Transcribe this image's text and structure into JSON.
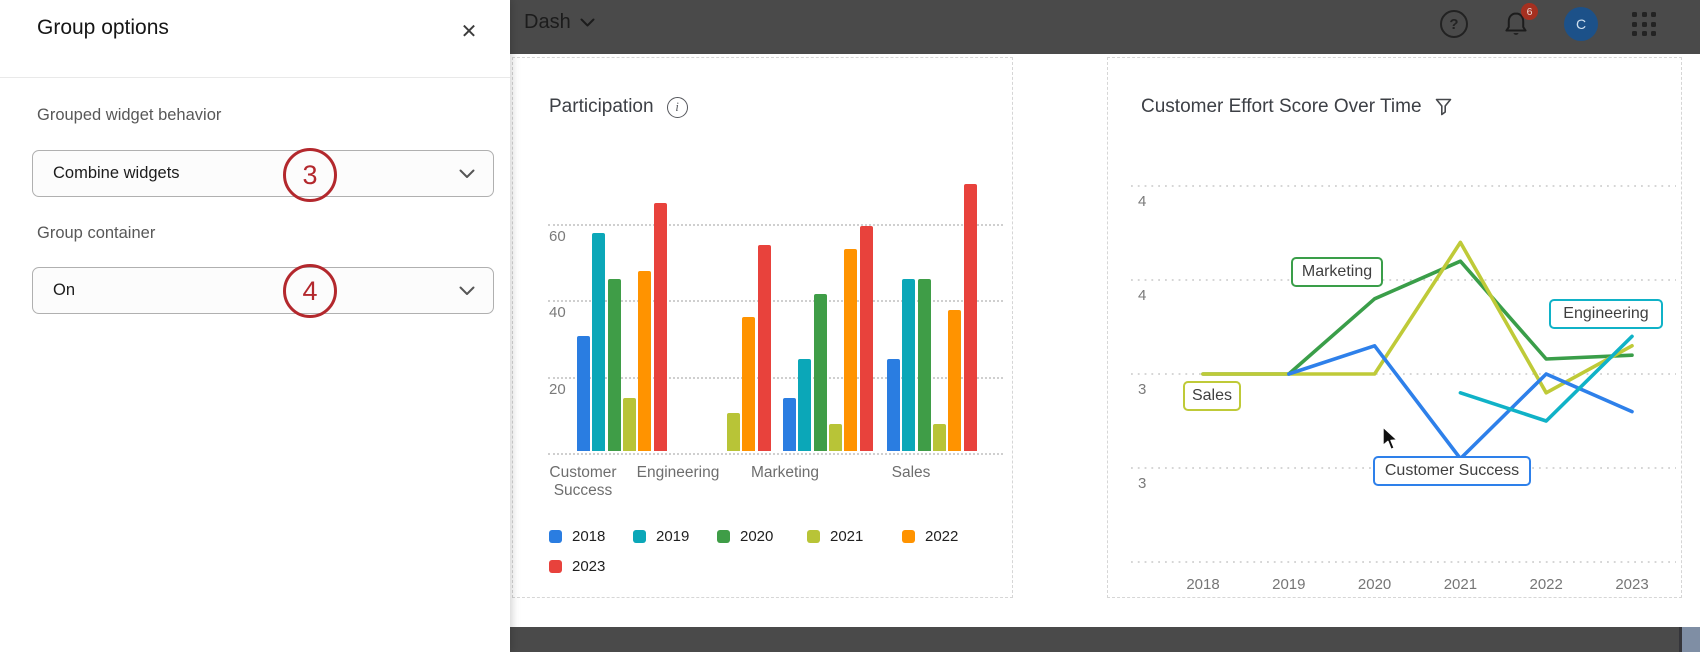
{
  "topbar": {
    "dashboard_name": "Dash",
    "notification_count": "6",
    "avatar_initial": "C",
    "help_glyph": "?"
  },
  "panel": {
    "title": "Group options",
    "close_glyph": "✕",
    "fields": [
      {
        "label": "Grouped widget behavior",
        "value": "Combine widgets",
        "annotation": "3"
      },
      {
        "label": "Group container",
        "value": "On",
        "annotation": "4"
      }
    ]
  },
  "icons": {
    "info": "i",
    "filter": "funnel",
    "dropdown": "chevron-down"
  },
  "chart_data": [
    {
      "type": "bar",
      "title": "Participation",
      "categories": [
        "Customer\nSuccess",
        "Engineering",
        "Marketing",
        "Sales"
      ],
      "years": [
        "2018",
        "2019",
        "2020",
        "2021",
        "2022",
        "2023"
      ],
      "colors": [
        "#2a7de1",
        "#0ba7b8",
        "#3f9d47",
        "#b8c437",
        "#ff9300",
        "#e8423c"
      ],
      "series": [
        {
          "name": "2018",
          "values": [
            30,
            null,
            14,
            24
          ]
        },
        {
          "name": "2019",
          "values": [
            57,
            null,
            24,
            45
          ]
        },
        {
          "name": "2020",
          "values": [
            45,
            null,
            41,
            45
          ]
        },
        {
          "name": "2021",
          "values": [
            14,
            10,
            7,
            7
          ]
        },
        {
          "name": "2022",
          "values": [
            47,
            35,
            53,
            37
          ]
        },
        {
          "name": "2023",
          "values": [
            65,
            54,
            59,
            70
          ]
        }
      ],
      "y_ticks": [
        20,
        40,
        60
      ],
      "ylim": [
        0,
        75
      ],
      "grid": "dotted",
      "legend_position": "bottom"
    },
    {
      "type": "line",
      "title": "Customer Effort Score Over Time",
      "x": [
        "2018",
        "2019",
        "2020",
        "2021",
        "2022",
        "2023"
      ],
      "y_axis_labels": [
        "4",
        "4",
        "3",
        "3"
      ],
      "gridline_values": [
        4.0,
        3.5,
        3.0,
        2.5
      ],
      "ylim": [
        2.2,
        4.2
      ],
      "grid": "dotted",
      "series": [
        {
          "name": "Marketing",
          "color": "#3a9e49",
          "values": [
            3.0,
            3.0,
            3.4,
            3.6,
            3.08,
            3.1
          ]
        },
        {
          "name": "Sales",
          "color": "#bfca38",
          "values": [
            3.0,
            3.0,
            3.0,
            3.7,
            2.9,
            3.15
          ]
        },
        {
          "name": "Customer Success",
          "color": "#2e80ea",
          "values": [
            null,
            3.0,
            3.15,
            2.55,
            3.0,
            2.8
          ]
        },
        {
          "name": "Engineering",
          "color": "#10b2c7",
          "values": [
            null,
            null,
            null,
            2.9,
            2.75,
            3.2
          ]
        }
      ]
    }
  ]
}
